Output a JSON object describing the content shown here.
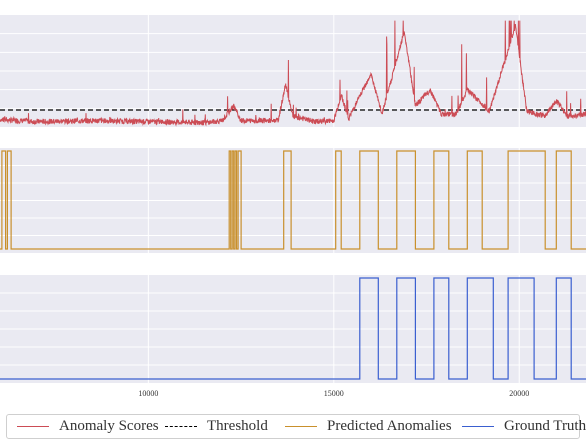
{
  "chart_data": {
    "type": "line",
    "shared_x": {
      "ticks": [
        10000,
        15000,
        20000
      ],
      "tick_labels": [
        "10000",
        "15000",
        "20000"
      ],
      "xlim": [
        6000,
        21800
      ]
    },
    "panels": [
      {
        "name": "scores",
        "ylim": [
          0,
          1.0
        ],
        "threshold": 0.16,
        "series": [
          {
            "name": "Anomaly Scores",
            "kind": "noisy",
            "color": "#cc4c55",
            "base": 0.06,
            "noise": 0.025,
            "segments": [
              {
                "x": 6000,
                "y": 0.07
              },
              {
                "x": 7000,
                "y": 0.05
              },
              {
                "x": 8500,
                "y": 0.06
              },
              {
                "x": 10000,
                "y": 0.05
              },
              {
                "x": 11500,
                "y": 0.04
              },
              {
                "x": 12000,
                "y": 0.06
              },
              {
                "x": 12300,
                "y": 0.2
              },
              {
                "x": 12500,
                "y": 0.06
              },
              {
                "x": 13500,
                "y": 0.06
              },
              {
                "x": 13700,
                "y": 0.4
              },
              {
                "x": 13900,
                "y": 0.1
              },
              {
                "x": 14500,
                "y": 0.05
              },
              {
                "x": 15000,
                "y": 0.06
              },
              {
                "x": 15200,
                "y": 0.3
              },
              {
                "x": 15400,
                "y": 0.08
              },
              {
                "x": 16000,
                "y": 0.5
              },
              {
                "x": 16300,
                "y": 0.12
              },
              {
                "x": 16900,
                "y": 0.9
              },
              {
                "x": 17200,
                "y": 0.2
              },
              {
                "x": 17600,
                "y": 0.35
              },
              {
                "x": 17900,
                "y": 0.12
              },
              {
                "x": 18300,
                "y": 0.12
              },
              {
                "x": 18600,
                "y": 0.35
              },
              {
                "x": 19200,
                "y": 0.15
              },
              {
                "x": 19900,
                "y": 0.95
              },
              {
                "x": 20200,
                "y": 0.15
              },
              {
                "x": 20700,
                "y": 0.1
              },
              {
                "x": 21000,
                "y": 0.25
              },
              {
                "x": 21300,
                "y": 0.1
              },
              {
                "x": 21800,
                "y": 0.12
              }
            ]
          },
          {
            "name": "Threshold",
            "kind": "threshold",
            "color": "#000000",
            "value": 0.16
          }
        ]
      },
      {
        "name": "predicted",
        "ylim": [
          0,
          1.0
        ],
        "series": [
          {
            "name": "Predicted Anomalies",
            "kind": "step",
            "color": "#c9902c",
            "intervals": [
              [
                6050,
                6150
              ],
              [
                6200,
                6300
              ],
              [
                12180,
                12220
              ],
              [
                12260,
                12300
              ],
              [
                12340,
                12380
              ],
              [
                12420,
                12500
              ],
              [
                13650,
                13850
              ],
              [
                15050,
                15200
              ],
              [
                15700,
                16200
              ],
              [
                16700,
                17200
              ],
              [
                17700,
                18100
              ],
              [
                18600,
                19000
              ],
              [
                19700,
                20700
              ],
              [
                21000,
                21400
              ]
            ]
          }
        ]
      },
      {
        "name": "truth",
        "ylim": [
          0,
          1.0
        ],
        "series": [
          {
            "name": "Ground Truth",
            "kind": "step",
            "color": "#3a5fd0",
            "intervals": [
              [
                15700,
                16200
              ],
              [
                16700,
                17200
              ],
              [
                17700,
                18100
              ],
              [
                18600,
                19300
              ],
              [
                19700,
                20400
              ],
              [
                21000,
                21400
              ]
            ]
          }
        ]
      }
    ],
    "legend": {
      "position": "bottom",
      "entries": [
        {
          "label": "Anomaly Scores",
          "color": "#cc4c55",
          "style": "solid"
        },
        {
          "label": "Threshold",
          "color": "#000000",
          "style": "dashed"
        },
        {
          "label": "Predicted Anomalies",
          "color": "#c9902c",
          "style": "solid"
        },
        {
          "label": "Ground Truth",
          "color": "#3a5fd0",
          "style": "solid"
        }
      ]
    },
    "grid": true
  }
}
